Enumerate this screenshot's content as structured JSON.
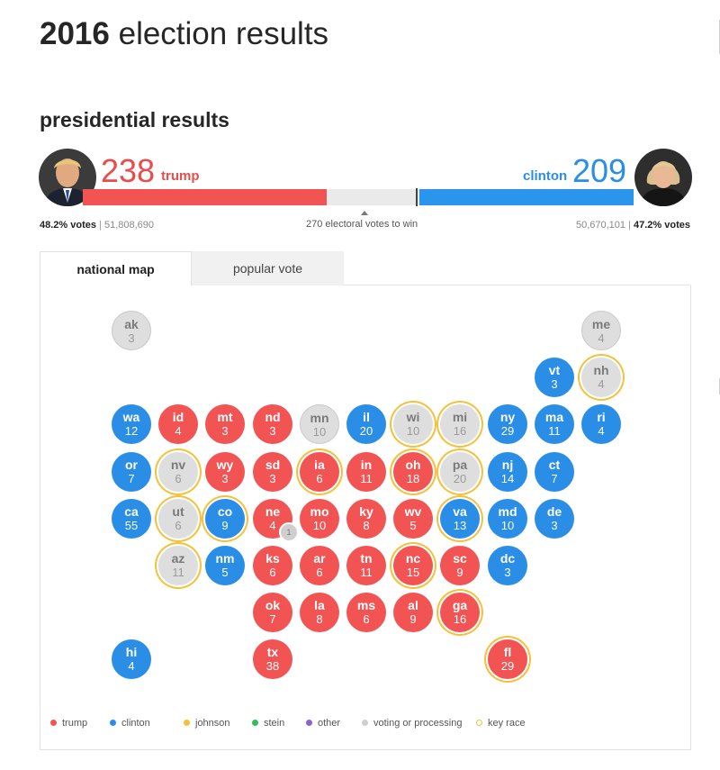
{
  "page": {
    "title_year": "2016",
    "title_rest": " election results"
  },
  "section": {
    "title": "presidential results"
  },
  "candidates": {
    "trump": {
      "name": "trump",
      "electoral": "238",
      "pct_votes": "48.2% votes",
      "votes": "51,808,690",
      "color": "#f25454"
    },
    "clinton": {
      "name": "clinton",
      "electoral": "209",
      "pct_votes": "47.2% votes",
      "votes": "50,670,101",
      "color": "#2a8ee6"
    }
  },
  "race": {
    "to_win_label": "270 electoral votes to win",
    "total_electoral": 538,
    "to_win": 270
  },
  "tabs": [
    {
      "label": "national map",
      "active": true
    },
    {
      "label": "popular vote",
      "active": false
    }
  ],
  "states": [
    {
      "ab": "ak",
      "ev": "3",
      "status": "undecided",
      "key": false
    },
    {
      "ab": "me",
      "ev": "4",
      "status": "undecided",
      "key": false
    },
    {
      "ab": "vt",
      "ev": "3",
      "status": "clinton",
      "key": false
    },
    {
      "ab": "nh",
      "ev": "4",
      "status": "undecided",
      "key": true
    },
    {
      "ab": "wa",
      "ev": "12",
      "status": "clinton",
      "key": false
    },
    {
      "ab": "id",
      "ev": "4",
      "status": "trump",
      "key": false
    },
    {
      "ab": "mt",
      "ev": "3",
      "status": "trump",
      "key": false
    },
    {
      "ab": "nd",
      "ev": "3",
      "status": "trump",
      "key": false
    },
    {
      "ab": "mn",
      "ev": "10",
      "status": "undecided",
      "key": false
    },
    {
      "ab": "il",
      "ev": "20",
      "status": "clinton",
      "key": false
    },
    {
      "ab": "wi",
      "ev": "10",
      "status": "undecided",
      "key": true
    },
    {
      "ab": "mi",
      "ev": "16",
      "status": "undecided",
      "key": true
    },
    {
      "ab": "ny",
      "ev": "29",
      "status": "clinton",
      "key": false
    },
    {
      "ab": "ma",
      "ev": "11",
      "status": "clinton",
      "key": false
    },
    {
      "ab": "ri",
      "ev": "4",
      "status": "clinton",
      "key": false
    },
    {
      "ab": "or",
      "ev": "7",
      "status": "clinton",
      "key": false
    },
    {
      "ab": "nv",
      "ev": "6",
      "status": "undecided",
      "key": true
    },
    {
      "ab": "wy",
      "ev": "3",
      "status": "trump",
      "key": false
    },
    {
      "ab": "sd",
      "ev": "3",
      "status": "trump",
      "key": false
    },
    {
      "ab": "ia",
      "ev": "6",
      "status": "trump",
      "key": true
    },
    {
      "ab": "in",
      "ev": "11",
      "status": "trump",
      "key": false
    },
    {
      "ab": "oh",
      "ev": "18",
      "status": "trump",
      "key": true
    },
    {
      "ab": "pa",
      "ev": "20",
      "status": "undecided",
      "key": true
    },
    {
      "ab": "nj",
      "ev": "14",
      "status": "clinton",
      "key": false
    },
    {
      "ab": "ct",
      "ev": "7",
      "status": "clinton",
      "key": false
    },
    {
      "ab": "ca",
      "ev": "55",
      "status": "clinton",
      "key": false
    },
    {
      "ab": "ut",
      "ev": "6",
      "status": "undecided",
      "key": true
    },
    {
      "ab": "co",
      "ev": "9",
      "status": "clinton",
      "key": true
    },
    {
      "ab": "ne",
      "ev": "4",
      "status": "trump",
      "key": false
    },
    {
      "ab": "mo",
      "ev": "10",
      "status": "trump",
      "key": false
    },
    {
      "ab": "ky",
      "ev": "8",
      "status": "trump",
      "key": false
    },
    {
      "ab": "wv",
      "ev": "5",
      "status": "trump",
      "key": false
    },
    {
      "ab": "va",
      "ev": "13",
      "status": "clinton",
      "key": true
    },
    {
      "ab": "md",
      "ev": "10",
      "status": "clinton",
      "key": false
    },
    {
      "ab": "de",
      "ev": "3",
      "status": "clinton",
      "key": false
    },
    {
      "ab": "az",
      "ev": "11",
      "status": "undecided",
      "key": true
    },
    {
      "ab": "nm",
      "ev": "5",
      "status": "clinton",
      "key": false
    },
    {
      "ab": "ks",
      "ev": "6",
      "status": "trump",
      "key": false
    },
    {
      "ab": "ar",
      "ev": "6",
      "status": "trump",
      "key": false
    },
    {
      "ab": "tn",
      "ev": "11",
      "status": "trump",
      "key": false
    },
    {
      "ab": "nc",
      "ev": "15",
      "status": "trump",
      "key": true
    },
    {
      "ab": "sc",
      "ev": "9",
      "status": "trump",
      "key": false
    },
    {
      "ab": "dc",
      "ev": "3",
      "status": "clinton",
      "key": false
    },
    {
      "ab": "ok",
      "ev": "7",
      "status": "trump",
      "key": false
    },
    {
      "ab": "la",
      "ev": "8",
      "status": "trump",
      "key": false
    },
    {
      "ab": "ms",
      "ev": "6",
      "status": "trump",
      "key": false
    },
    {
      "ab": "al",
      "ev": "9",
      "status": "trump",
      "key": false
    },
    {
      "ab": "ga",
      "ev": "16",
      "status": "trump",
      "key": true
    },
    {
      "ab": "hi",
      "ev": "4",
      "status": "clinton",
      "key": false
    },
    {
      "ab": "tx",
      "ev": "38",
      "status": "trump",
      "key": false
    },
    {
      "ab": "fl",
      "ev": "29",
      "status": "trump",
      "key": true
    }
  ],
  "ne_badge": "1",
  "legend": [
    {
      "label": "trump",
      "color": "#f25454",
      "ring": false
    },
    {
      "label": "clinton",
      "color": "#2a8ee6",
      "ring": false
    },
    {
      "label": "johnson",
      "color": "#f4c23a",
      "ring": false
    },
    {
      "label": "stein",
      "color": "#2fbe5a",
      "ring": false
    },
    {
      "label": "other",
      "color": "#8d63c9",
      "ring": false
    },
    {
      "label": "voting or processing",
      "color": "#cfcfcf",
      "ring": false
    },
    {
      "label": "key race",
      "color": "#f4c23a",
      "ring": true
    }
  ]
}
